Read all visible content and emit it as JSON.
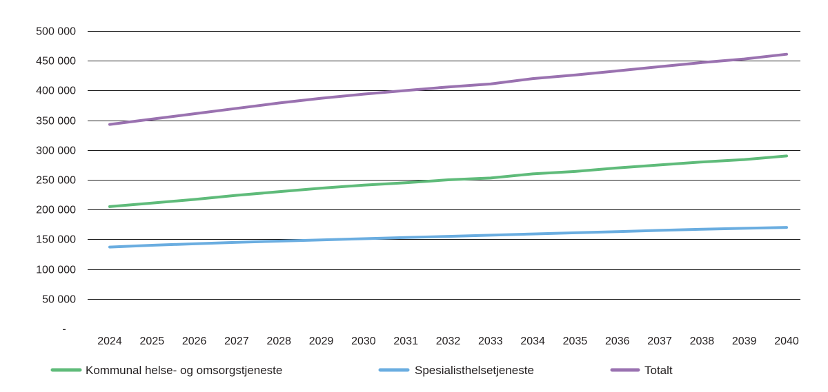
{
  "chart_data": {
    "type": "line",
    "x": [
      "2024",
      "2025",
      "2026",
      "2027",
      "2028",
      "2029",
      "2030",
      "2031",
      "2032",
      "2033",
      "2034",
      "2035",
      "2036",
      "2037",
      "2038",
      "2039",
      "2040"
    ],
    "ylim": [
      0,
      500000
    ],
    "yticks": [
      0,
      50000,
      100000,
      150000,
      200000,
      250000,
      300000,
      350000,
      400000,
      450000,
      500000
    ],
    "ytick_labels": [
      "-",
      "50 000",
      "100 000",
      "150 000",
      "200 000",
      "250 000",
      "300 000",
      "350 000",
      "400 000",
      "450 000",
      "500 000"
    ],
    "grid": true,
    "legend_position": "bottom",
    "series": [
      {
        "name": "Kommunal helse- og omsorgstjeneste",
        "color": "#5fbb7a",
        "values": [
          205000,
          211000,
          217000,
          224000,
          230000,
          236000,
          241000,
          245000,
          250000,
          253000,
          260000,
          264000,
          270000,
          275000,
          280000,
          284000,
          290000
        ]
      },
      {
        "name": "Spesialisthelsetjeneste",
        "color": "#6aade0",
        "values": [
          137000,
          140000,
          142500,
          145000,
          147000,
          149000,
          151000,
          153000,
          155000,
          157000,
          159000,
          161000,
          163000,
          165000,
          167000,
          168500,
          170000
        ]
      },
      {
        "name": "Totalt",
        "color": "#9a72b0",
        "values": [
          343000,
          352000,
          361000,
          370000,
          379000,
          387000,
          394000,
          400000,
          406000,
          411000,
          420000,
          426000,
          433000,
          440000,
          447000,
          453000,
          461000
        ]
      }
    ]
  }
}
